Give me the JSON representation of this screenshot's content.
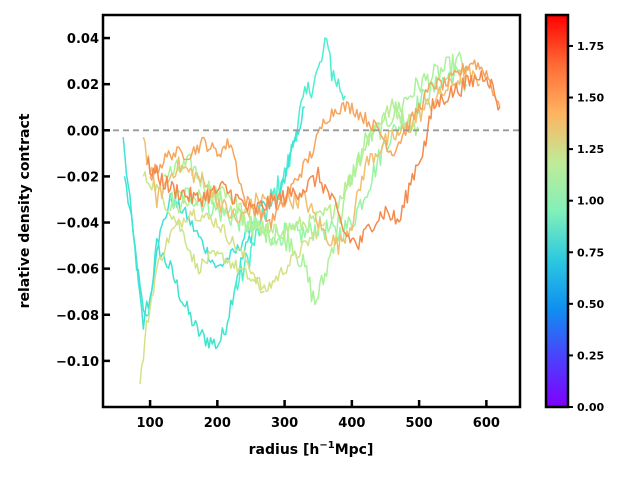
{
  "chart_data": {
    "type": "line",
    "title": "",
    "xlabel": "radius [h$^{-1}$Mpc]",
    "xlabel_main": "radius [h",
    "xlabel_sup": "−1",
    "xlabel_tail": "Mpc]",
    "ylabel": "relative density contract",
    "xlim": [
      30,
      650
    ],
    "ylim": [
      -0.12,
      0.05
    ],
    "x_ticks": [
      100,
      200,
      300,
      400,
      500,
      600
    ],
    "y_ticks": [
      0.04,
      0.02,
      0.0,
      -0.02,
      -0.04,
      -0.06,
      -0.08,
      -0.1
    ],
    "y_tick_labels": [
      "0.04",
      "0.02",
      "0.00",
      "−0.02",
      "−0.04",
      "−0.06",
      "−0.08",
      "−0.10"
    ],
    "reference_line": {
      "y": 0.0,
      "style": "dashed",
      "color": "#999999"
    },
    "colorbar": {
      "colormap": "rainbow",
      "range": [
        0.0,
        1.9
      ],
      "ticks": [
        0.0,
        0.25,
        0.5,
        0.75,
        1.0,
        1.25,
        1.5,
        1.75
      ],
      "tick_labels": [
        "0.00",
        "0.25",
        "0.50",
        "0.75",
        "1.00",
        "1.25",
        "1.50",
        "1.75"
      ]
    },
    "series": [
      {
        "z": 0.72,
        "color": "#3fe4cf",
        "noise": 0.004,
        "x": [
          62,
          70,
          80,
          90,
          100,
          110,
          130,
          150,
          170,
          180,
          200,
          210,
          230,
          250,
          260
        ],
        "y": [
          -0.02,
          -0.035,
          -0.058,
          -0.08,
          -0.073,
          -0.05,
          -0.06,
          -0.075,
          -0.087,
          -0.09,
          -0.093,
          -0.088,
          -0.062,
          -0.045,
          -0.04
        ]
      },
      {
        "z": 0.76,
        "color": "#4defd0",
        "noise": 0.006,
        "x": [
          225,
          240,
          260,
          280,
          300,
          310,
          320,
          330,
          340,
          350,
          360,
          365,
          370,
          380,
          390
        ],
        "y": [
          -0.07,
          -0.06,
          -0.045,
          -0.03,
          -0.02,
          -0.01,
          0.005,
          0.013,
          0.02,
          0.025,
          0.035,
          0.04,
          0.025,
          0.02,
          0.015
        ]
      },
      {
        "z": 0.7,
        "color": "#3ee2d8",
        "noise": 0.003,
        "x": [
          60,
          75,
          90,
          100,
          110,
          130,
          150,
          170,
          200,
          230,
          260,
          290,
          310,
          330
        ],
        "y": [
          -0.003,
          -0.045,
          -0.084,
          -0.075,
          -0.05,
          -0.03,
          -0.035,
          -0.045,
          -0.06,
          -0.052,
          -0.035,
          -0.03,
          -0.01,
          0.01
        ]
      },
      {
        "z": 0.95,
        "color": "#98f5a6",
        "noise": 0.005,
        "x": [
          130,
          160,
          200,
          240,
          270,
          300,
          330,
          350,
          380,
          400,
          430,
          450,
          480,
          510,
          530,
          550,
          570
        ],
        "y": [
          -0.03,
          -0.028,
          -0.035,
          -0.04,
          -0.045,
          -0.045,
          -0.045,
          -0.042,
          -0.045,
          -0.04,
          -0.02,
          -0.005,
          0.005,
          0.015,
          0.02,
          0.025,
          0.02
        ]
      },
      {
        "z": 1.05,
        "color": "#a9f29a",
        "noise": 0.005,
        "x": [
          120,
          160,
          200,
          240,
          280,
          310,
          330,
          345,
          360,
          380,
          400,
          420,
          440,
          470,
          500,
          530,
          560,
          570
        ],
        "y": [
          -0.02,
          -0.015,
          -0.03,
          -0.04,
          -0.045,
          -0.048,
          -0.06,
          -0.075,
          -0.063,
          -0.04,
          -0.02,
          -0.005,
          0.0,
          0.01,
          0.02,
          0.025,
          0.03,
          0.028
        ]
      },
      {
        "z": 1.1,
        "color": "#b8ee92",
        "noise": 0.004,
        "x": [
          130,
          170,
          210,
          250,
          280,
          310,
          340,
          370,
          400,
          430,
          460,
          480,
          500
        ],
        "y": [
          -0.035,
          -0.03,
          -0.025,
          -0.04,
          -0.045,
          -0.042,
          -0.04,
          -0.035,
          -0.02,
          0.0,
          0.01,
          0.005,
          0.0
        ]
      },
      {
        "z": 1.3,
        "color": "#d8e086",
        "noise": 0.003,
        "x": [
          85,
          95,
          110,
          130,
          160,
          200,
          240,
          270,
          300,
          330,
          360
        ],
        "y": [
          -0.11,
          -0.085,
          -0.06,
          -0.045,
          -0.035,
          -0.04,
          -0.055,
          -0.07,
          -0.06,
          -0.05,
          -0.04
        ]
      },
      {
        "z": 1.25,
        "color": "#cde48a",
        "noise": 0.003,
        "x": [
          90,
          110,
          130,
          150,
          170,
          190,
          210,
          240,
          270
        ],
        "y": [
          -0.02,
          -0.025,
          -0.035,
          -0.045,
          -0.06,
          -0.055,
          -0.055,
          -0.062,
          -0.07
        ]
      },
      {
        "z": 1.45,
        "color": "#f0c070",
        "noise": 0.004,
        "x": [
          90,
          110,
          140,
          170,
          200,
          230,
          260,
          290,
          330,
          360,
          380,
          400,
          420,
          450,
          480,
          510,
          530,
          550,
          570,
          590
        ],
        "y": [
          -0.003,
          -0.03,
          -0.015,
          -0.02,
          -0.03,
          -0.04,
          -0.03,
          -0.03,
          -0.03,
          -0.045,
          -0.05,
          -0.04,
          -0.015,
          -0.005,
          0.0,
          0.01,
          0.015,
          0.02,
          0.025,
          0.02
        ]
      },
      {
        "z": 1.55,
        "color": "#f6a55e",
        "noise": 0.003,
        "x": [
          100,
          130,
          160,
          180,
          200,
          220,
          240,
          260,
          280,
          300,
          320,
          340,
          360,
          380,
          400,
          420,
          440,
          460,
          480,
          500,
          520,
          540,
          560,
          580,
          600,
          620
        ],
        "y": [
          -0.02,
          -0.01,
          -0.01,
          -0.005,
          -0.01,
          -0.005,
          -0.03,
          -0.035,
          -0.04,
          -0.03,
          -0.02,
          -0.01,
          0.005,
          0.01,
          0.01,
          0.005,
          0.0,
          -0.01,
          0.0,
          0.01,
          0.02,
          0.02,
          0.025,
          0.03,
          0.025,
          0.01
        ]
      },
      {
        "z": 1.65,
        "color": "#f58a4c",
        "noise": 0.004,
        "x": [
          95,
          130,
          170,
          210,
          250,
          290,
          330,
          350,
          370,
          390,
          410,
          430,
          450,
          470,
          490,
          510,
          520,
          540,
          570,
          600,
          620
        ],
        "y": [
          -0.015,
          -0.025,
          -0.03,
          -0.025,
          -0.035,
          -0.03,
          -0.025,
          -0.02,
          -0.03,
          -0.045,
          -0.05,
          -0.04,
          -0.035,
          -0.04,
          -0.02,
          -0.005,
          0.01,
          0.015,
          0.02,
          0.025,
          0.01
        ]
      }
    ]
  }
}
